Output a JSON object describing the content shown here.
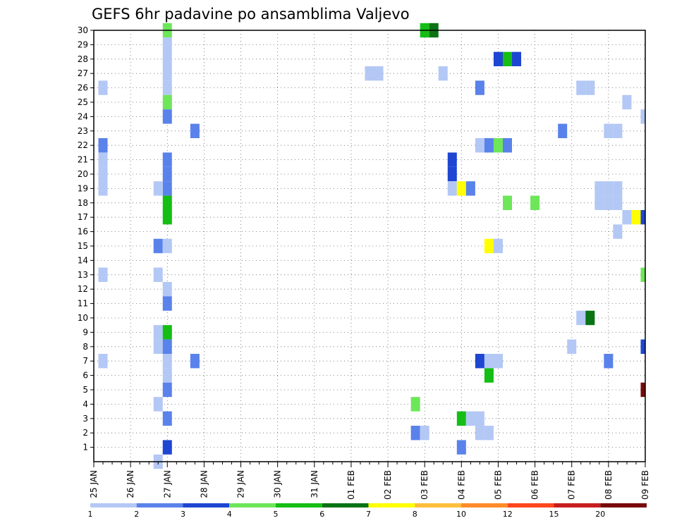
{
  "chart_data": {
    "type": "heatmap",
    "title": "GEFS 6hr padavine po ansamblima Valjevo",
    "x_tick_labels": [
      "25 JAN",
      "26 JAN",
      "27 JAN",
      "28 JAN",
      "29 JAN",
      "30 JAN",
      "31 JAN",
      "01 FEB",
      "02 FEB",
      "03 FEB",
      "04 FEB",
      "05 FEB",
      "06 FEB",
      "07 FEB",
      "08 FEB",
      "09 FEB"
    ],
    "x_range_steps": [
      0,
      60
    ],
    "y_tick_labels": [
      "1",
      "2",
      "3",
      "4",
      "5",
      "6",
      "7",
      "8",
      "9",
      "10",
      "11",
      "12",
      "13",
      "14",
      "15",
      "16",
      "17",
      "18",
      "19",
      "20",
      "21",
      "22",
      "23",
      "24",
      "25",
      "26",
      "27",
      "28",
      "29",
      "30"
    ],
    "y_range": [
      0,
      30
    ],
    "grid": true,
    "colorbar": {
      "labels": [
        "1",
        "2",
        "3",
        "4",
        "5",
        "6",
        "7",
        "8",
        "10",
        "12",
        "15",
        "20"
      ],
      "colors": [
        "#b4c8f5",
        "#5a82eb",
        "#1e46d2",
        "#6ee65a",
        "#14be14",
        "#0a7314",
        "#ffff00",
        "#ffbe3c",
        "#ff8c28",
        "#ff461e",
        "#c81e1e",
        "#780a0a"
      ]
    },
    "cells": [
      {
        "m": 30,
        "t": 8,
        "c": 4
      },
      {
        "m": 29,
        "t": 8,
        "c": 1
      },
      {
        "m": 28,
        "t": 8,
        "c": 1
      },
      {
        "m": 27,
        "t": 8,
        "c": 1
      },
      {
        "m": 26,
        "t": 8,
        "c": 1
      },
      {
        "m": 25,
        "t": 8,
        "c": 4
      },
      {
        "m": 24,
        "t": 8,
        "c": 2
      },
      {
        "m": 22,
        "t": 1,
        "c": 2
      },
      {
        "m": 21,
        "t": 1,
        "c": 1
      },
      {
        "m": 20,
        "t": 1,
        "c": 1
      },
      {
        "m": 19,
        "t": 1,
        "c": 1
      },
      {
        "m": 21,
        "t": 8,
        "c": 2
      },
      {
        "m": 20,
        "t": 8,
        "c": 2
      },
      {
        "m": 19,
        "t": 8,
        "c": 2
      },
      {
        "m": 19,
        "t": 7,
        "c": 1
      },
      {
        "m": 18,
        "t": 8,
        "c": 5
      },
      {
        "m": 17,
        "t": 8,
        "c": 5
      },
      {
        "m": 15,
        "t": 7,
        "c": 2
      },
      {
        "m": 15,
        "t": 8,
        "c": 1
      },
      {
        "m": 13,
        "t": 7,
        "c": 1
      },
      {
        "m": 12,
        "t": 8,
        "c": 1
      },
      {
        "m": 11,
        "t": 8,
        "c": 2
      },
      {
        "m": 9,
        "t": 7,
        "c": 1
      },
      {
        "m": 9,
        "t": 8,
        "c": 5
      },
      {
        "m": 8,
        "t": 7,
        "c": 1
      },
      {
        "m": 8,
        "t": 8,
        "c": 2
      },
      {
        "m": 7,
        "t": 8,
        "c": 1
      },
      {
        "m": 6,
        "t": 8,
        "c": 1
      },
      {
        "m": 5,
        "t": 8,
        "c": 2
      },
      {
        "m": 4,
        "t": 7,
        "c": 1
      },
      {
        "m": 3,
        "t": 8,
        "c": 2
      },
      {
        "m": 1,
        "t": 8,
        "c": 3
      },
      {
        "m": 0,
        "t": 7,
        "c": 1
      },
      {
        "m": 26,
        "t": 1,
        "c": 1
      },
      {
        "m": 13,
        "t": 1,
        "c": 1
      },
      {
        "m": 7,
        "t": 1,
        "c": 1
      },
      {
        "m": 23,
        "t": 11,
        "c": 2
      },
      {
        "m": 7,
        "t": 11,
        "c": 2
      },
      {
        "m": 27,
        "t": 30,
        "c": 1
      },
      {
        "m": 27,
        "t": 31,
        "c": 1
      },
      {
        "m": 30,
        "t": 36,
        "c": 5
      },
      {
        "m": 30,
        "t": 37,
        "c": 6
      },
      {
        "m": 27,
        "t": 38,
        "c": 1
      },
      {
        "m": 4,
        "t": 35,
        "c": 4
      },
      {
        "m": 2,
        "t": 35,
        "c": 2
      },
      {
        "m": 2,
        "t": 36,
        "c": 1
      },
      {
        "m": 28,
        "t": 44,
        "c": 3
      },
      {
        "m": 28,
        "t": 45,
        "c": 5
      },
      {
        "m": 28,
        "t": 46,
        "c": 3
      },
      {
        "m": 26,
        "t": 42,
        "c": 2
      },
      {
        "m": 22,
        "t": 42,
        "c": 1
      },
      {
        "m": 22,
        "t": 43,
        "c": 2
      },
      {
        "m": 22,
        "t": 44,
        "c": 4
      },
      {
        "m": 22,
        "t": 45,
        "c": 2
      },
      {
        "m": 21,
        "t": 39,
        "c": 3
      },
      {
        "m": 20,
        "t": 39,
        "c": 3
      },
      {
        "m": 19,
        "t": 39,
        "c": 1
      },
      {
        "m": 19,
        "t": 40,
        "c": 7
      },
      {
        "m": 19,
        "t": 41,
        "c": 2
      },
      {
        "m": 18,
        "t": 45,
        "c": 4
      },
      {
        "m": 18,
        "t": 48,
        "c": 4
      },
      {
        "m": 15,
        "t": 43,
        "c": 7
      },
      {
        "m": 15,
        "t": 44,
        "c": 1
      },
      {
        "m": 7,
        "t": 42,
        "c": 3
      },
      {
        "m": 7,
        "t": 43,
        "c": 1
      },
      {
        "m": 7,
        "t": 44,
        "c": 1
      },
      {
        "m": 6,
        "t": 43,
        "c": 5
      },
      {
        "m": 3,
        "t": 40,
        "c": 5
      },
      {
        "m": 3,
        "t": 41,
        "c": 1
      },
      {
        "m": 3,
        "t": 42,
        "c": 1
      },
      {
        "m": 2,
        "t": 42,
        "c": 1
      },
      {
        "m": 2,
        "t": 43,
        "c": 1
      },
      {
        "m": 1,
        "t": 40,
        "c": 2
      },
      {
        "m": 26,
        "t": 53,
        "c": 1
      },
      {
        "m": 26,
        "t": 54,
        "c": 1
      },
      {
        "m": 25,
        "t": 58,
        "c": 1
      },
      {
        "m": 24,
        "t": 60,
        "c": 1
      },
      {
        "m": 23,
        "t": 51,
        "c": 2
      },
      {
        "m": 23,
        "t": 56,
        "c": 1
      },
      {
        "m": 23,
        "t": 57,
        "c": 1
      },
      {
        "m": 19,
        "t": 55,
        "c": 1
      },
      {
        "m": 19,
        "t": 56,
        "c": 1
      },
      {
        "m": 19,
        "t": 57,
        "c": 1
      },
      {
        "m": 18,
        "t": 55,
        "c": 1
      },
      {
        "m": 18,
        "t": 56,
        "c": 1
      },
      {
        "m": 18,
        "t": 57,
        "c": 1
      },
      {
        "m": 17,
        "t": 58,
        "c": 1
      },
      {
        "m": 17,
        "t": 59,
        "c": 7
      },
      {
        "m": 17,
        "t": 60,
        "c": 3
      },
      {
        "m": 16,
        "t": 57,
        "c": 1
      },
      {
        "m": 13,
        "t": 60,
        "c": 4
      },
      {
        "m": 10,
        "t": 53,
        "c": 1
      },
      {
        "m": 10,
        "t": 54,
        "c": 6
      },
      {
        "m": 8,
        "t": 52,
        "c": 1
      },
      {
        "m": 8,
        "t": 60,
        "c": 3
      },
      {
        "m": 7,
        "t": 56,
        "c": 2
      },
      {
        "m": 5,
        "t": 60,
        "c": 12
      }
    ]
  }
}
